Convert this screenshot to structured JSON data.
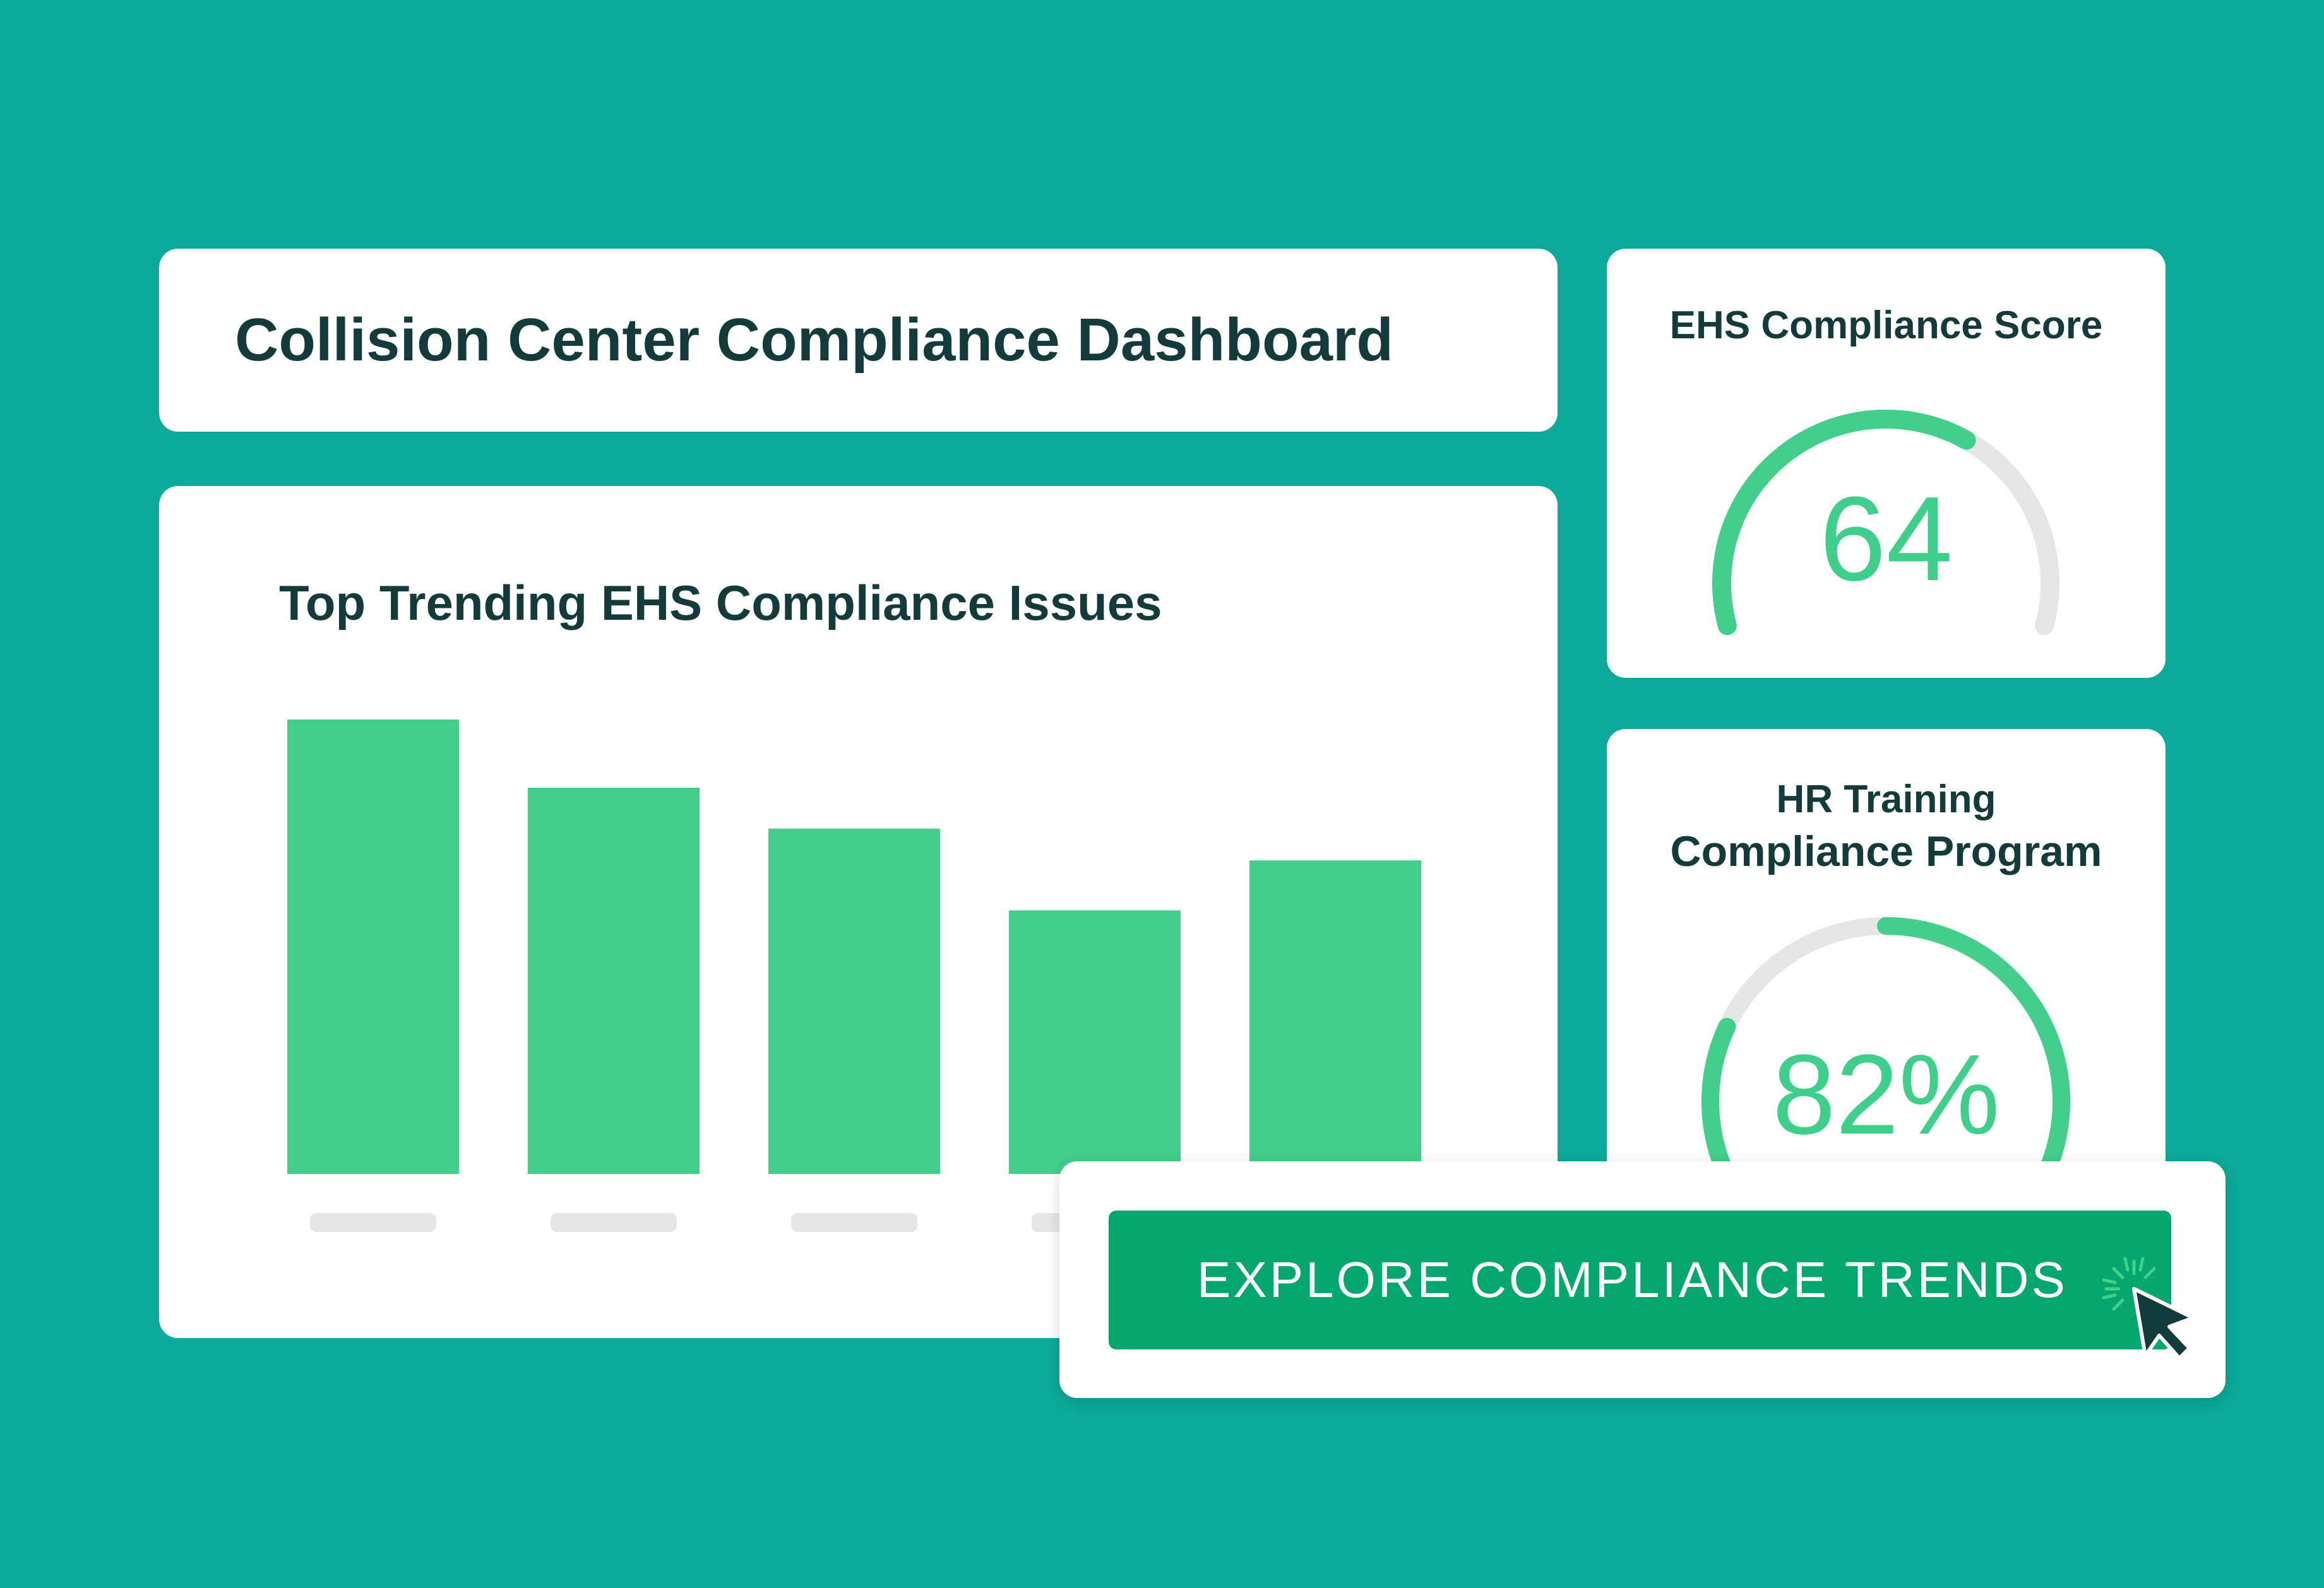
{
  "dashboard": {
    "title": "Collision Center Compliance Dashboard"
  },
  "issues_chart": {
    "title": "Top Trending EHS Compliance Issues"
  },
  "chart_data": {
    "type": "bar",
    "title": "Top Trending EHS Compliance Issues",
    "categories": [
      "",
      "",
      "",
      "",
      ""
    ],
    "values": [
      100,
      85,
      76,
      58,
      69
    ],
    "ylim": [
      0,
      100
    ],
    "grid": false,
    "bar_color": "#41cf8a",
    "placeholder_label_color": "#e6e6e6"
  },
  "ehs_score": {
    "title": "EHS Compliance Score",
    "value": "64",
    "level": 0.64,
    "track_color": "#e6e6e6",
    "fill_color": "#41cf8a"
  },
  "hr_training": {
    "title_line1": "HR Training",
    "title_line2": "Compliance Program",
    "value": "82%",
    "level": 0.82,
    "track_color": "#e6e6e6",
    "fill_color": "#41cf8a"
  },
  "cta": {
    "label": "EXPLORE COMPLIANCE TRENDS",
    "icon": "cursor-click-icon"
  },
  "colors": {
    "background": "#0caa9a",
    "card": "#ffffff",
    "heading": "#133b3b",
    "accent": "#41cf8a",
    "button": "#04a86c"
  }
}
